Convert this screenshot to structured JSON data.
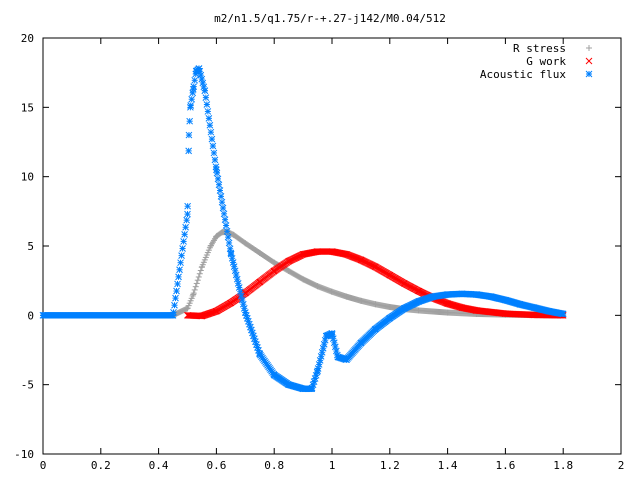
{
  "chart_data": {
    "type": "scatter",
    "title": "m2/n1.5/q1.75/r-+.27-j142/M0.04/512",
    "xlabel": "",
    "ylabel": "",
    "xlim": [
      0,
      2
    ],
    "ylim": [
      -10,
      20
    ],
    "x_ticks": [
      "0",
      "0.2",
      "0.4",
      "0.6",
      "0.8",
      "1",
      "1.2",
      "1.4",
      "1.6",
      "1.8",
      "2"
    ],
    "y_ticks": [
      "20",
      "15",
      "10",
      "5",
      "0",
      "-5",
      "-10"
    ],
    "x_tick_values": [
      0,
      0.2,
      0.4,
      0.6,
      0.8,
      1.0,
      1.2,
      1.4,
      1.6,
      1.8,
      2.0
    ],
    "y_tick_values": [
      20,
      15,
      10,
      5,
      0,
      -5,
      -10
    ],
    "grid": false,
    "legend_position": "top-right",
    "series": [
      {
        "name": "R stress",
        "marker": "plus",
        "color": "#a0a0a0",
        "x": [
          0,
          0.45,
          0.5,
          0.52,
          0.55,
          0.58,
          0.6,
          0.62,
          0.64,
          0.66,
          0.7,
          0.75,
          0.8,
          0.85,
          0.9,
          0.95,
          1.0,
          1.05,
          1.1,
          1.15,
          1.2,
          1.25,
          1.3,
          1.4,
          1.5,
          1.6,
          1.7,
          1.8
        ],
        "values": [
          0,
          0,
          0.5,
          1.5,
          3.5,
          5.0,
          5.7,
          6.0,
          6.0,
          5.8,
          5.2,
          4.5,
          3.8,
          3.2,
          2.6,
          2.1,
          1.7,
          1.35,
          1.05,
          0.8,
          0.6,
          0.45,
          0.35,
          0.2,
          0.1,
          0.05,
          0.02,
          0
        ]
      },
      {
        "name": "G work",
        "marker": "cross",
        "color": "#ff0000",
        "x": [
          0.5,
          0.55,
          0.6,
          0.65,
          0.7,
          0.75,
          0.8,
          0.85,
          0.9,
          0.95,
          1.0,
          1.05,
          1.1,
          1.15,
          1.2,
          1.25,
          1.3,
          1.35,
          1.4,
          1.45,
          1.5,
          1.6,
          1.7,
          1.8
        ],
        "values": [
          0,
          -0.05,
          0.3,
          0.9,
          1.6,
          2.4,
          3.2,
          3.9,
          4.4,
          4.6,
          4.6,
          4.4,
          4.0,
          3.5,
          2.9,
          2.3,
          1.75,
          1.25,
          0.85,
          0.55,
          0.35,
          0.12,
          0.03,
          0
        ]
      },
      {
        "name": "Acoustic flux",
        "marker": "star",
        "color": "#0080ff",
        "x": [
          0,
          0.45,
          0.5,
          0.505,
          0.51,
          0.52,
          0.53,
          0.54,
          0.56,
          0.6,
          0.65,
          0.7,
          0.75,
          0.8,
          0.85,
          0.9,
          0.93,
          0.95,
          0.98,
          1.0,
          1.02,
          1.05,
          1.1,
          1.15,
          1.2,
          1.25,
          1.3,
          1.35,
          1.4,
          1.45,
          1.5,
          1.55,
          1.6,
          1.65,
          1.7,
          1.75,
          1.8
        ],
        "values": [
          0,
          0,
          7.3,
          13.0,
          15.0,
          16.3,
          17.6,
          17.8,
          16.2,
          10.5,
          4.5,
          0.2,
          -2.8,
          -4.3,
          -5.0,
          -5.3,
          -5.3,
          -4.0,
          -1.5,
          -1.3,
          -3.0,
          -3.2,
          -2.0,
          -1.0,
          -0.2,
          0.5,
          1.0,
          1.35,
          1.5,
          1.55,
          1.5,
          1.35,
          1.1,
          0.8,
          0.55,
          0.3,
          0.1
        ]
      }
    ]
  }
}
